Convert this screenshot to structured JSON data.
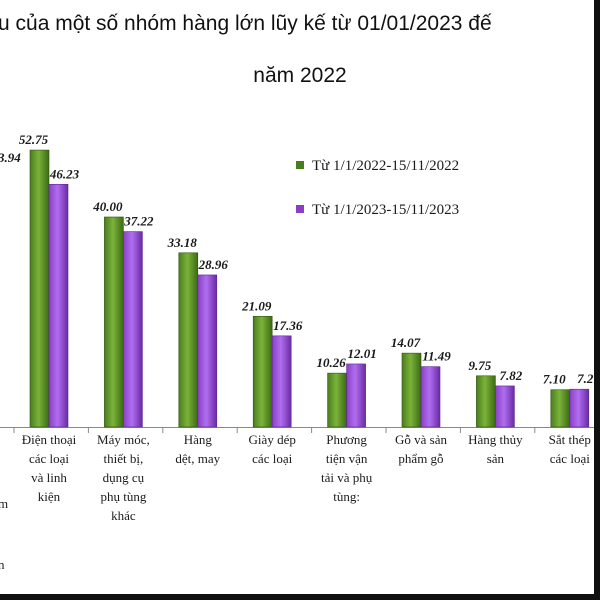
{
  "title_line1": "u của một số nhóm hàng lớn lũy kế từ 01/01/2023 đế",
  "title_line2": "năm 2022",
  "partial_labels": {
    "left_value": "3.94",
    "left_fragment_1": "m",
    "left_fragment_2": "n"
  },
  "chart_data": {
    "type": "bar",
    "categories": [
      [
        "Điện thoại",
        "các loại",
        "và linh",
        "kiện"
      ],
      [
        "Máy móc,",
        "thiết bị,",
        "dụng cụ",
        "phụ tùng",
        "khác"
      ],
      [
        "Hàng",
        "dệt, may"
      ],
      [
        "Giày dép",
        "các loại"
      ],
      [
        "Phương",
        "tiện vận",
        "tải và phụ",
        "tùng:"
      ],
      [
        "Gỗ và sản",
        "phẩm gỗ"
      ],
      [
        "Hàng thủy",
        "sản"
      ],
      [
        "Sắt thép",
        "các loại"
      ]
    ],
    "series": [
      {
        "name": "Từ 1/1/2022-15/11/2022",
        "color": "#4a7d1e",
        "values": [
          52.75,
          40.0,
          33.18,
          21.09,
          10.26,
          14.07,
          9.75,
          7.1
        ]
      },
      {
        "name": "Từ 1/1/2023-15/11/2023",
        "color": "#8b3fc6",
        "values": [
          46.23,
          37.22,
          28.96,
          17.36,
          12.01,
          11.49,
          7.82,
          7.2
        ]
      }
    ],
    "value_labels": [
      [
        "52.75",
        "40.00",
        "33.18",
        "21.09",
        "10.26",
        "14.07",
        "9.75",
        "7.10"
      ],
      [
        "46.23",
        "37.22",
        "28.96",
        "17.36",
        "12.01",
        "11.49",
        "7.82",
        "7.2"
      ]
    ],
    "legend_position": "top-right",
    "grid": false
  }
}
